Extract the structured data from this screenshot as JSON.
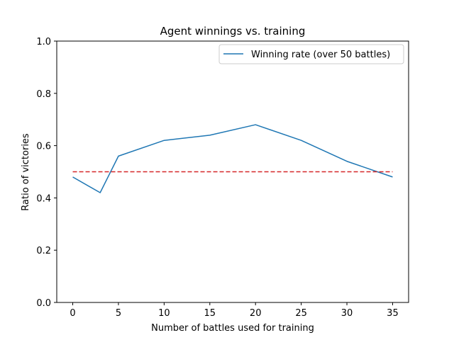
{
  "chart_data": {
    "type": "line",
    "title": "Agent winnings vs. training",
    "xlabel": "Number of battles used for training",
    "ylabel": "Ratio of victories",
    "xlim": [
      -1.75,
      36.75
    ],
    "ylim": [
      0.0,
      1.0
    ],
    "x_ticks": [
      0,
      5,
      10,
      15,
      20,
      25,
      30,
      35
    ],
    "y_ticks": [
      0.0,
      0.2,
      0.4,
      0.6,
      0.8,
      1.0
    ],
    "x_tick_labels": [
      "0",
      "5",
      "10",
      "15",
      "20",
      "25",
      "30",
      "35"
    ],
    "y_tick_labels": [
      "0.0",
      "0.2",
      "0.4",
      "0.6",
      "0.8",
      "1.0"
    ],
    "grid": false,
    "legend_position": "top-right",
    "series": [
      {
        "name": "Winning rate (over 50 battles)",
        "color": "#1f77b4",
        "style": "solid",
        "x": [
          0,
          3,
          5,
          10,
          15,
          20,
          25,
          30,
          35
        ],
        "y": [
          0.48,
          0.42,
          0.56,
          0.62,
          0.64,
          0.68,
          0.62,
          0.54,
          0.48
        ]
      }
    ],
    "reference_line": {
      "color": "#d62728",
      "style": "dashed",
      "x": [
        0,
        35
      ],
      "y": [
        0.5,
        0.5
      ]
    }
  }
}
